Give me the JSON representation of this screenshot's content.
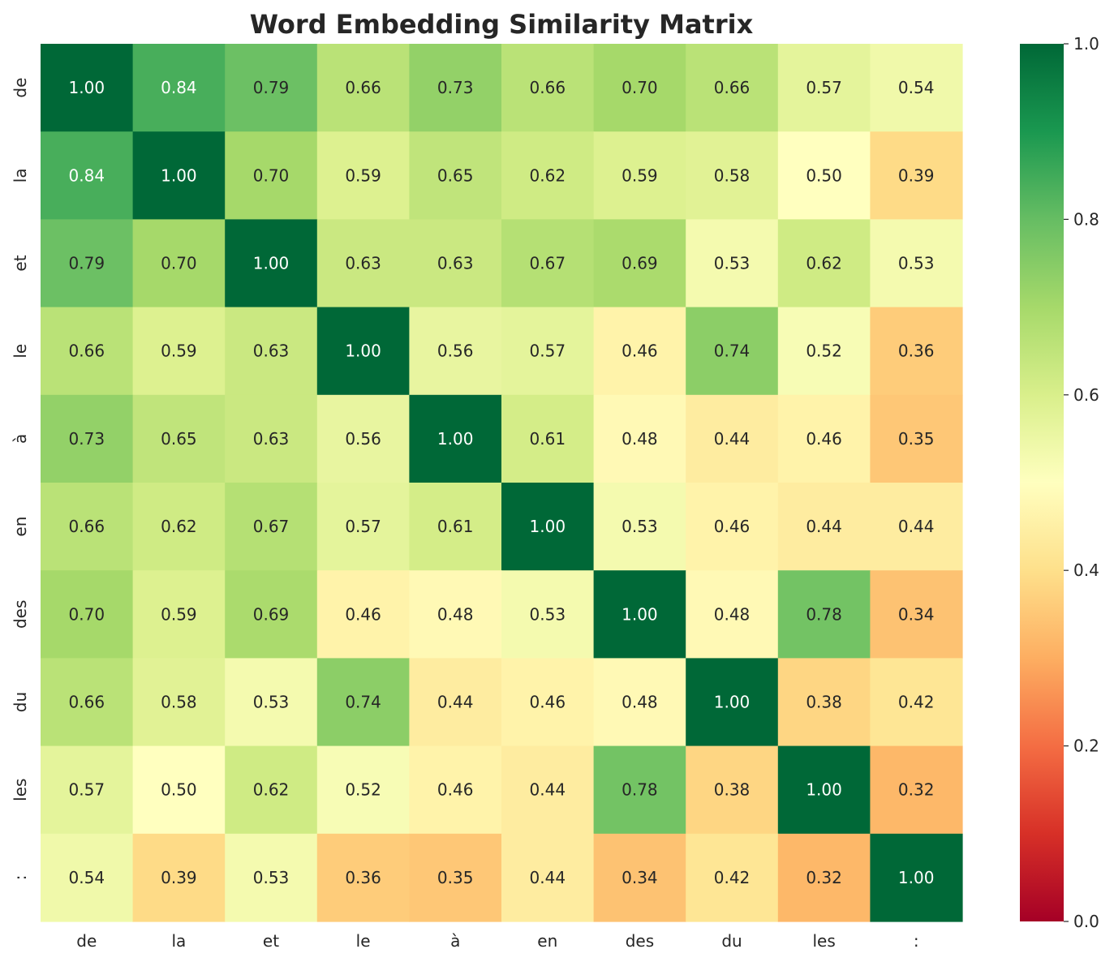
{
  "chart_data": {
    "type": "heatmap",
    "title": "Word Embedding Similarity Matrix",
    "x_labels": [
      "de",
      "la",
      "et",
      "le",
      "à",
      "en",
      "des",
      "du",
      "les",
      ":"
    ],
    "y_labels": [
      "de",
      "la",
      "et",
      "le",
      "à",
      "en",
      "des",
      "du",
      "les",
      ":"
    ],
    "values": [
      [
        1.0,
        0.84,
        0.79,
        0.66,
        0.73,
        0.66,
        0.7,
        0.66,
        0.57,
        0.54
      ],
      [
        0.84,
        1.0,
        0.7,
        0.59,
        0.65,
        0.62,
        0.59,
        0.58,
        0.5,
        0.39
      ],
      [
        0.79,
        0.7,
        1.0,
        0.63,
        0.63,
        0.67,
        0.69,
        0.53,
        0.62,
        0.53
      ],
      [
        0.66,
        0.59,
        0.63,
        1.0,
        0.56,
        0.57,
        0.46,
        0.74,
        0.52,
        0.36
      ],
      [
        0.73,
        0.65,
        0.63,
        0.56,
        1.0,
        0.61,
        0.48,
        0.44,
        0.46,
        0.35
      ],
      [
        0.66,
        0.62,
        0.67,
        0.57,
        0.61,
        1.0,
        0.53,
        0.46,
        0.44,
        0.44
      ],
      [
        0.7,
        0.59,
        0.69,
        0.46,
        0.48,
        0.53,
        1.0,
        0.48,
        0.78,
        0.34
      ],
      [
        0.66,
        0.58,
        0.53,
        0.74,
        0.44,
        0.46,
        0.48,
        1.0,
        0.38,
        0.42
      ],
      [
        0.57,
        0.5,
        0.62,
        0.52,
        0.46,
        0.44,
        0.78,
        0.38,
        1.0,
        0.32
      ],
      [
        0.54,
        0.39,
        0.53,
        0.36,
        0.35,
        0.44,
        0.34,
        0.42,
        0.32,
        1.0
      ]
    ],
    "value_format": "0.00",
    "colormap": "RdYlGn",
    "colormap_stops": [
      "#a50026",
      "#d73027",
      "#f46d43",
      "#fdae61",
      "#fee08b",
      "#ffffbf",
      "#d9ef8b",
      "#a6d96a",
      "#66bd63",
      "#1a9850",
      "#006837"
    ],
    "vmin": 0.0,
    "vmax": 1.0,
    "colorbar_ticks": [
      "0.0",
      "0.2",
      "0.4",
      "0.6",
      "0.8",
      "1.0"
    ],
    "grid": false,
    "legend": "colorbar-right"
  }
}
